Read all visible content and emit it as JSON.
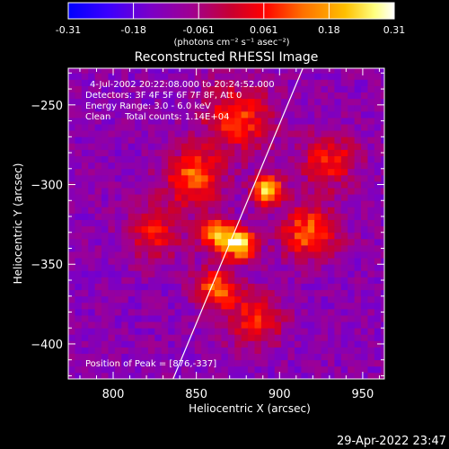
{
  "colorbar": {
    "tick_labels": [
      "-0.31",
      "-0.18",
      "-0.061",
      "0.061",
      "0.18",
      "0.31"
    ],
    "unit_label": "(photons cm⁻² s⁻¹ asec⁻²)"
  },
  "chart_data": {
    "type": "heatmap",
    "title": "Reconstructed RHESSI Image",
    "xlabel": "Heliocentric X (arcsec)",
    "ylabel": "Heliocentric Y (arcsec)",
    "xlim": [
      773,
      963
    ],
    "ylim": [
      -422,
      -227
    ],
    "xticks": [
      800,
      850,
      900,
      950
    ],
    "yticks": [
      -250,
      -300,
      -350,
      -400
    ],
    "value_range": [
      -0.31,
      0.31
    ],
    "colormap": [
      "#0000ff",
      "#3a00ff",
      "#7a00c8",
      "#a00090",
      "#c80030",
      "#ff0000",
      "#ff7000",
      "#ffc000",
      "#ffff80",
      "#ffffff"
    ],
    "annotations": [
      "4-Jul-2002 20:22:08.000 to 20:24:52.000",
      "Detectors: 3F 4F 5F 6F 7F 8F, Att 0",
      "Energy Range: 3.0 - 6.0 keV",
      "Clean     Total counts: 1.14E+04"
    ],
    "peak_label": "Position of Peak = [876,-337]",
    "peak": [
      876,
      -337
    ],
    "limb_line": [
      [
        836,
        -422
      ],
      [
        914,
        -227
      ]
    ],
    "emission_sources": [
      {
        "x": 893,
        "y": -303,
        "peak": 0.31,
        "sigma": 6
      },
      {
        "x": 876,
        "y": -337,
        "peak": 0.29,
        "sigma": 7
      },
      {
        "x": 862,
        "y": -330,
        "peak": 0.24,
        "sigma": 7
      },
      {
        "x": 848,
        "y": -295,
        "peak": 0.16,
        "sigma": 12
      },
      {
        "x": 862,
        "y": -365,
        "peak": 0.16,
        "sigma": 9
      },
      {
        "x": 918,
        "y": -330,
        "peak": 0.15,
        "sigma": 12
      },
      {
        "x": 875,
        "y": -258,
        "peak": 0.11,
        "sigma": 15
      },
      {
        "x": 930,
        "y": -285,
        "peak": 0.09,
        "sigma": 12
      },
      {
        "x": 885,
        "y": -385,
        "peak": 0.09,
        "sigma": 12
      },
      {
        "x": 825,
        "y": -330,
        "peak": 0.07,
        "sigma": 12
      }
    ],
    "background_level": -0.12
  },
  "timestamp": "29-Apr-2022 23:47"
}
